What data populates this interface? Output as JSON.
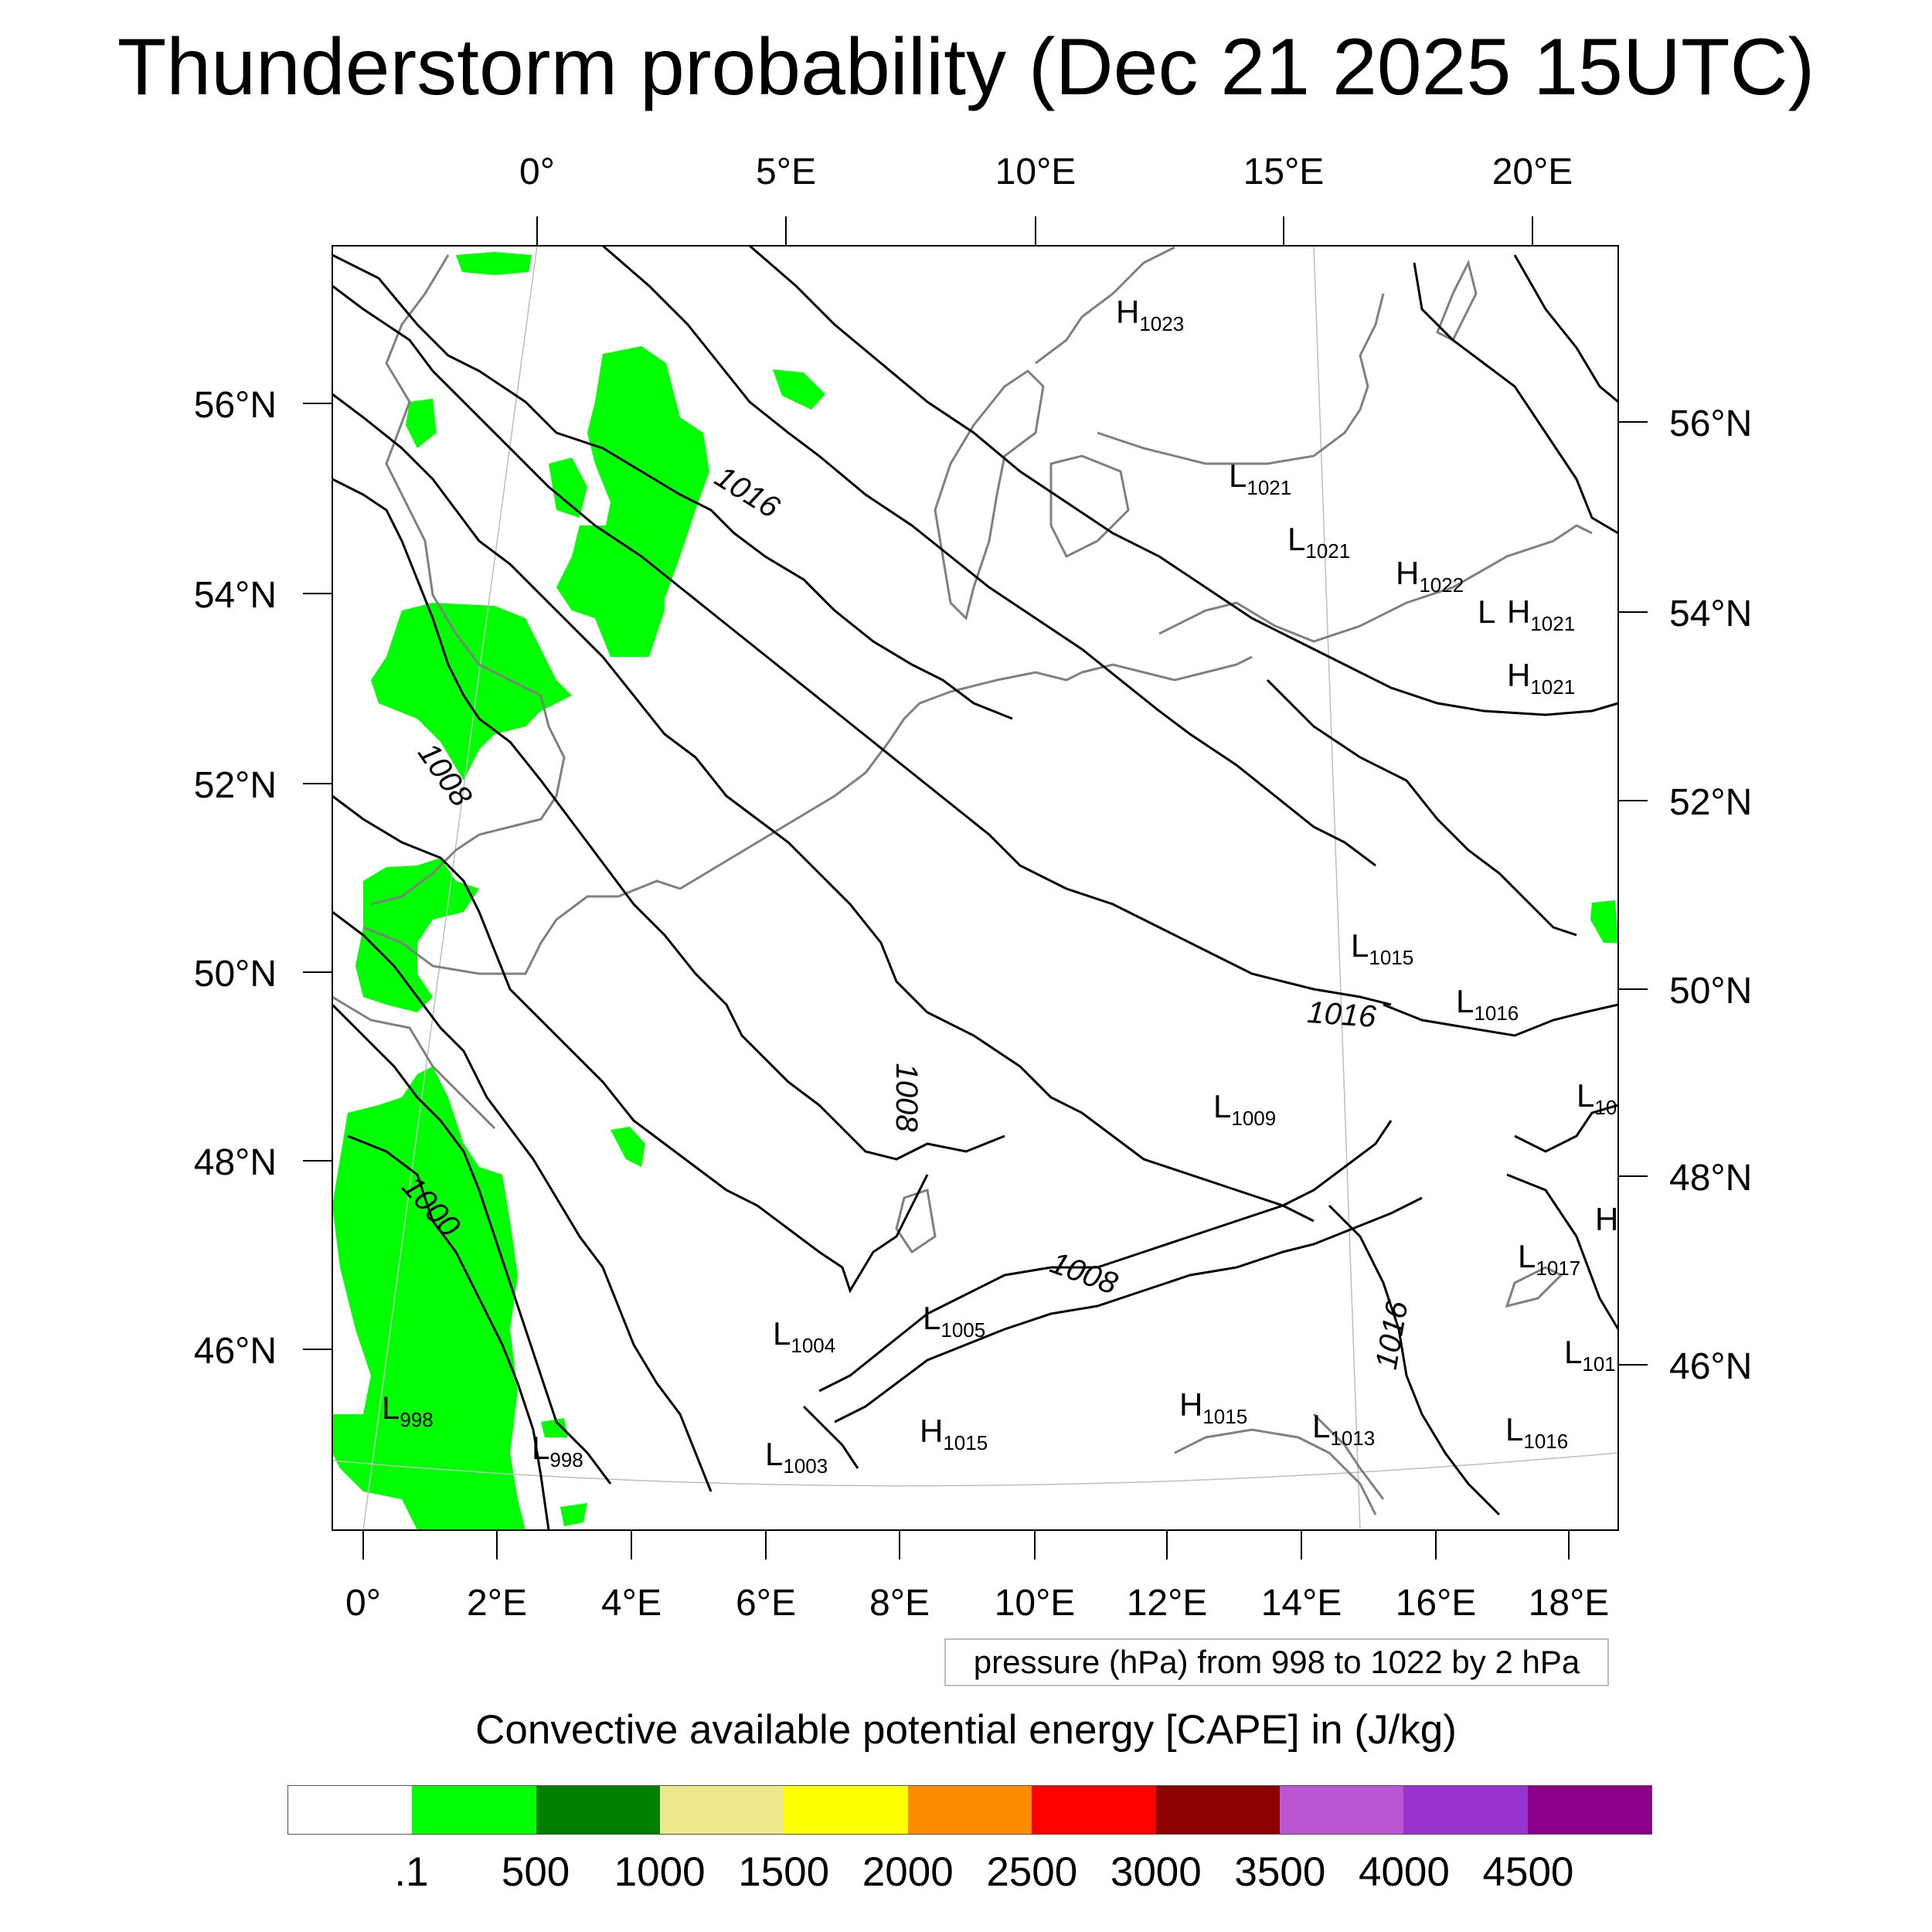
{
  "title": "Thunderstorm probability (Dec 21 2025 15UTC)",
  "map": {
    "top_lon_labels": [
      "0°",
      "5°E",
      "10°E",
      "15°E",
      "20°E"
    ],
    "bottom_lon_labels": [
      "0°",
      "2°E",
      "4°E",
      "6°E",
      "8°E",
      "10°E",
      "12°E",
      "14°E",
      "16°E",
      "18°E"
    ],
    "left_lat_labels": [
      "56°N",
      "54°N",
      "52°N",
      "50°N",
      "48°N",
      "46°N"
    ],
    "right_lat_labels": [
      "56°N",
      "54°N",
      "52°N",
      "50°N",
      "48°N",
      "46°N"
    ],
    "contour_labels": [
      "1016",
      "1008",
      "1000",
      "1008",
      "1016",
      "1008",
      "1016"
    ],
    "pressure_centers": [
      {
        "type": "H",
        "value": "1023"
      },
      {
        "type": "L",
        "value": "1021"
      },
      {
        "type": "L",
        "value": "1021"
      },
      {
        "type": "H",
        "value": "1022"
      },
      {
        "type": "L",
        "value": ""
      },
      {
        "type": "H",
        "value": "1021"
      },
      {
        "type": "H",
        "value": "1021"
      },
      {
        "type": "L",
        "value": "1015"
      },
      {
        "type": "L",
        "value": "1016"
      },
      {
        "type": "L",
        "value": "10"
      },
      {
        "type": "L",
        "value": "1009"
      },
      {
        "type": "H",
        "value": ""
      },
      {
        "type": "L",
        "value": "1017"
      },
      {
        "type": "L",
        "value": "101"
      },
      {
        "type": "L",
        "value": "1004"
      },
      {
        "type": "L",
        "value": "1005"
      },
      {
        "type": "L",
        "value": "998"
      },
      {
        "type": "L",
        "value": "998"
      },
      {
        "type": "L",
        "value": "1003"
      },
      {
        "type": "H",
        "value": "1015"
      },
      {
        "type": "H",
        "value": "1015"
      },
      {
        "type": "L",
        "value": "1013"
      },
      {
        "type": "L",
        "value": "1016"
      }
    ],
    "colors": {
      "cape_fill": "#00ff00",
      "contour": "#000000",
      "coast": "#808080",
      "gridline": "#bdbdbd"
    }
  },
  "contour_note": "pressure (hPa) from 998 to 1022 by 2 hPa",
  "colorbar": {
    "title": "Convective available potential energy [CAPE] in (J/kg)",
    "colors": [
      "#ffffff",
      "#00ff00",
      "#008000",
      "#f0e68c",
      "#ffff00",
      "#ff8c00",
      "#ff0000",
      "#8b0000",
      "#ba55d3",
      "#9932cc",
      "#8b008b"
    ],
    "labels": [
      ".1",
      "500",
      "1000",
      "1500",
      "2000",
      "2500",
      "3000",
      "3500",
      "4000",
      "4500"
    ]
  }
}
